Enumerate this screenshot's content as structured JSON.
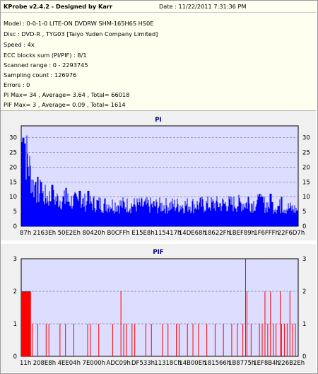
{
  "header": {
    "title": "KProbe v2.4.2 - Designed by Karr",
    "date": "Date : 11/22/2011 7:31:36 PM",
    "lines": [
      "Model : 0-0-1-0 LITE-ON DVDRW SHM-165H6S HS0E",
      "Disc : DVD-R , TYG03 [Taiyo Yuden Company Limited]",
      "Speed : 4x",
      "ECC blocks sum (PI/PIF) : 8/1",
      "Scanned range : 0 - 2293745",
      "Sampling count : 126976",
      "Errors : 0",
      "PI Max= 34 , Average= 3.64 , Total= 66018",
      "PIF Max= 3 , Average= 0.09 , Total= 1614"
    ]
  },
  "colors": {
    "plot_bg": "#ddddff",
    "pi": "#0000ff",
    "pif": "#ff0000",
    "panel_bg": "#f0f0f0"
  },
  "chart_data": [
    {
      "type": "bar",
      "title": "PI",
      "xlabel": "",
      "ylabel": "",
      "ylim": [
        0,
        34
      ],
      "yticks": [
        0,
        5,
        10,
        15,
        20,
        25,
        30
      ],
      "x_tick_labels": [
        "87h",
        "2163Eh",
        "50E2Eh",
        "80420h",
        "B0CFFh",
        "E15E8h",
        "115417h",
        "14DE68h",
        "18622Fh",
        "1BEF89h",
        "1F6FFFh",
        "22F6D7h"
      ],
      "x_range": [
        0,
        2293745
      ],
      "grid": true,
      "stats": {
        "max": 34,
        "average": 3.64,
        "total": 66018
      },
      "profile": [
        [
          0,
          31
        ],
        [
          0.005,
          28
        ],
        [
          0.02,
          25
        ],
        [
          0.04,
          15
        ],
        [
          0.08,
          11
        ],
        [
          0.12,
          10
        ],
        [
          0.2,
          9
        ],
        [
          0.3,
          8
        ],
        [
          0.5,
          7.5
        ],
        [
          0.7,
          8
        ],
        [
          0.85,
          8.5
        ],
        [
          0.95,
          7
        ],
        [
          1.0,
          6
        ]
      ],
      "spikes": [
        [
          0.005,
          30
        ],
        [
          0.012,
          28
        ],
        [
          0.05,
          15
        ],
        [
          0.07,
          15
        ],
        [
          0.11,
          14
        ],
        [
          0.16,
          13
        ],
        [
          0.21,
          12
        ],
        [
          0.24,
          12
        ],
        [
          0.82,
          10
        ],
        [
          0.86,
          11
        ],
        [
          0.87,
          10
        ],
        [
          0.9,
          11
        ],
        [
          0.94,
          10
        ]
      ]
    },
    {
      "type": "bar",
      "title": "PIF",
      "xlabel": "",
      "ylabel": "",
      "ylim": [
        0,
        3
      ],
      "yticks": [
        0,
        1,
        2,
        3
      ],
      "x_tick_labels": [
        "11h",
        "208E8h",
        "4EE04h",
        "7E000h",
        "ADC09h",
        "DF533h",
        "11318Ch",
        "14B00Eh",
        "181566h",
        "1B8775h",
        "1EF8B4h",
        "226B2Eh"
      ],
      "x_range": [
        0,
        2293745
      ],
      "grid": true,
      "stats": {
        "max": 3,
        "average": 0.09,
        "total": 1614
      },
      "dense_band": [
        0.0,
        0.035,
        2
      ],
      "bars": [
        [
          0.04,
          1
        ],
        [
          0.06,
          1
        ],
        [
          0.09,
          1
        ],
        [
          0.1,
          1
        ],
        [
          0.14,
          1
        ],
        [
          0.16,
          1
        ],
        [
          0.19,
          1
        ],
        [
          0.24,
          1
        ],
        [
          0.25,
          1
        ],
        [
          0.28,
          1
        ],
        [
          0.33,
          1
        ],
        [
          0.36,
          2
        ],
        [
          0.37,
          1
        ],
        [
          0.38,
          1
        ],
        [
          0.4,
          1
        ],
        [
          0.41,
          1
        ],
        [
          0.45,
          1
        ],
        [
          0.47,
          1
        ],
        [
          0.51,
          1
        ],
        [
          0.53,
          1
        ],
        [
          0.56,
          1
        ],
        [
          0.57,
          1
        ],
        [
          0.6,
          1
        ],
        [
          0.62,
          1
        ],
        [
          0.64,
          1
        ],
        [
          0.67,
          1
        ],
        [
          0.7,
          1
        ],
        [
          0.73,
          1
        ],
        [
          0.76,
          1
        ],
        [
          0.78,
          1
        ],
        [
          0.8,
          1
        ],
        [
          0.81,
          3
        ],
        [
          0.815,
          2
        ],
        [
          0.83,
          1
        ],
        [
          0.86,
          1
        ],
        [
          0.87,
          1
        ],
        [
          0.88,
          2
        ],
        [
          0.89,
          1
        ],
        [
          0.9,
          2
        ],
        [
          0.91,
          1
        ],
        [
          0.92,
          1
        ],
        [
          0.935,
          2
        ],
        [
          0.94,
          1
        ],
        [
          0.95,
          1
        ],
        [
          0.96,
          1
        ],
        [
          0.97,
          2
        ],
        [
          0.98,
          1
        ],
        [
          0.99,
          1
        ]
      ]
    }
  ]
}
